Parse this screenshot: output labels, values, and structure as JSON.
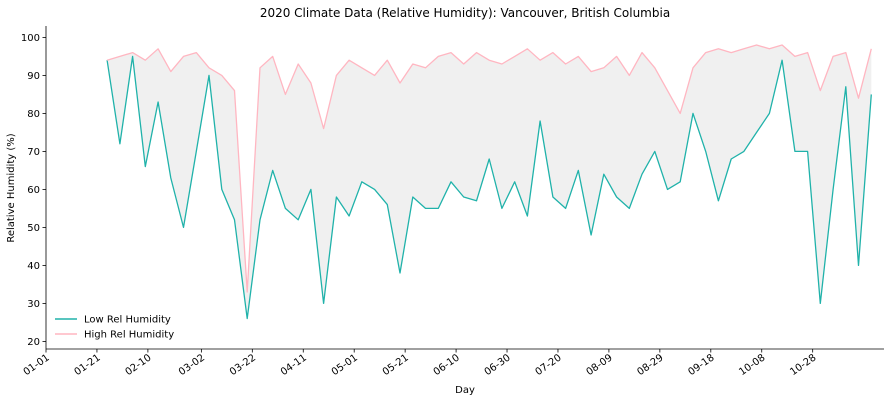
{
  "chart_data": {
    "type": "line",
    "title": "2020 Climate Data (Relative Humidity): Vancouver, British Columbia",
    "xlabel": "Day",
    "ylabel": "Relative Humidity (%)",
    "ylim": [
      18,
      103
    ],
    "yticks": [
      20,
      30,
      40,
      50,
      60,
      70,
      80,
      90,
      100
    ],
    "x_start": "2020-01-01",
    "x_end": "2020-11-25",
    "xticks": [
      "01-01",
      "01-21",
      "02-10",
      "03-02",
      "03-22",
      "04-11",
      "05-01",
      "05-21",
      "06-10",
      "06-30",
      "07-20",
      "08-09",
      "08-29",
      "09-18",
      "10-08",
      "10-28"
    ],
    "fill_between": true,
    "grid": false,
    "legend_position": "lower-left",
    "x": [
      "2020-01-25",
      "2020-01-30",
      "2020-02-04",
      "2020-02-09",
      "2020-02-14",
      "2020-02-19",
      "2020-02-24",
      "2020-02-29",
      "2020-03-05",
      "2020-03-10",
      "2020-03-15",
      "2020-03-20",
      "2020-03-25",
      "2020-03-30",
      "2020-04-04",
      "2020-04-09",
      "2020-04-14",
      "2020-04-19",
      "2020-04-24",
      "2020-04-29",
      "2020-05-04",
      "2020-05-09",
      "2020-05-14",
      "2020-05-19",
      "2020-05-24",
      "2020-05-29",
      "2020-06-03",
      "2020-06-08",
      "2020-06-13",
      "2020-06-18",
      "2020-06-23",
      "2020-06-28",
      "2020-07-03",
      "2020-07-08",
      "2020-07-13",
      "2020-07-18",
      "2020-07-23",
      "2020-07-28",
      "2020-08-02",
      "2020-08-07",
      "2020-08-12",
      "2020-08-17",
      "2020-08-22",
      "2020-08-27",
      "2020-09-01",
      "2020-09-06",
      "2020-09-11",
      "2020-09-16",
      "2020-09-21",
      "2020-09-26",
      "2020-10-01",
      "2020-10-06",
      "2020-10-11",
      "2020-10-16",
      "2020-10-21",
      "2020-10-26",
      "2020-10-31",
      "2020-11-05",
      "2020-11-10",
      "2020-11-15",
      "2020-11-20"
    ],
    "series": [
      {
        "name": "Low Rel Humidity",
        "color": "#20b2aa",
        "values": [
          94,
          72,
          95,
          66,
          83,
          63,
          50,
          70,
          90,
          60,
          52,
          26,
          52,
          65,
          55,
          52,
          60,
          30,
          58,
          53,
          62,
          60,
          56,
          38,
          58,
          55,
          55,
          62,
          58,
          57,
          68,
          55,
          62,
          53,
          78,
          58,
          55,
          65,
          48,
          64,
          58,
          55,
          64,
          70,
          60,
          62,
          80,
          70,
          57,
          68,
          70,
          75,
          80,
          94,
          70,
          70,
          30,
          60,
          87,
          40,
          85
        ]
      },
      {
        "name": "High Rel Humidity",
        "color": "#ffb6c1",
        "values": [
          94,
          95,
          96,
          94,
          97,
          91,
          95,
          96,
          92,
          90,
          86,
          33,
          92,
          95,
          85,
          93,
          88,
          76,
          90,
          94,
          92,
          90,
          94,
          88,
          93,
          92,
          95,
          96,
          93,
          96,
          94,
          93,
          95,
          97,
          94,
          96,
          93,
          95,
          91,
          92,
          95,
          90,
          96,
          92,
          86,
          80,
          92,
          96,
          97,
          96,
          97,
          98,
          97,
          98,
          95,
          96,
          86,
          95,
          96,
          84,
          97
        ]
      }
    ]
  }
}
